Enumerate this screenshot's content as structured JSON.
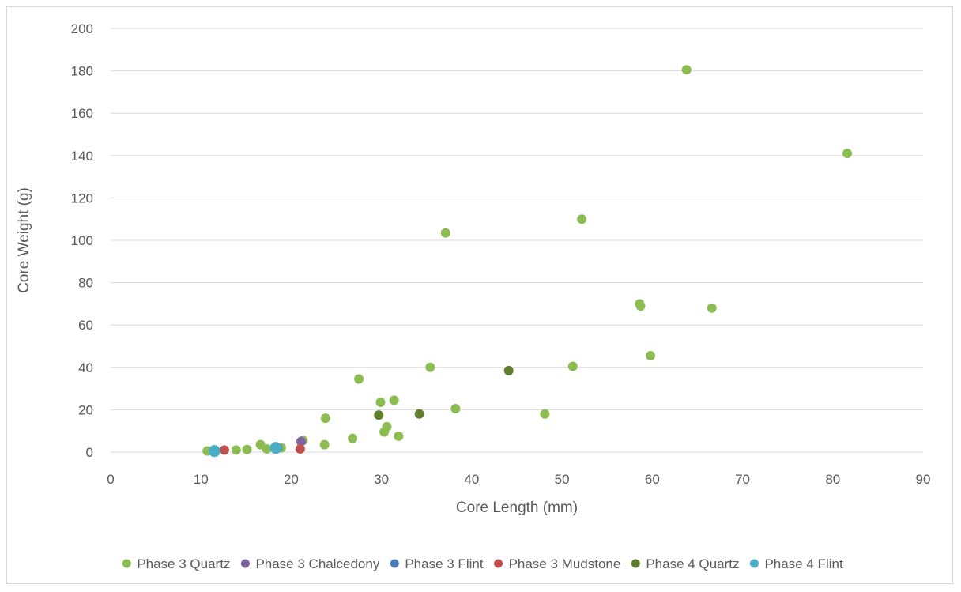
{
  "chart_data": {
    "type": "scatter",
    "title": "",
    "xlabel": "Core Length (mm)",
    "ylabel": "Core Weight (g)",
    "xlim": [
      0,
      90
    ],
    "ylim": [
      0,
      200
    ],
    "xticks": [
      0,
      10,
      20,
      30,
      40,
      50,
      60,
      70,
      80,
      90
    ],
    "yticks": [
      0,
      20,
      40,
      60,
      80,
      100,
      120,
      140,
      160,
      180,
      200
    ],
    "grid": "horizontal",
    "legend_position": "bottom",
    "series": [
      {
        "name": "Phase 3 Quartz",
        "color": "#8cbd52",
        "points": [
          [
            10.7,
            0.5
          ],
          [
            13.9,
            1.0
          ],
          [
            15.1,
            1.2
          ],
          [
            16.6,
            3.5
          ],
          [
            17.3,
            1.5
          ],
          [
            18.9,
            2.0
          ],
          [
            21.3,
            5.5
          ],
          [
            23.7,
            3.5
          ],
          [
            23.8,
            16.0
          ],
          [
            26.8,
            6.5
          ],
          [
            27.5,
            34.5
          ],
          [
            29.9,
            23.5
          ],
          [
            30.3,
            9.5
          ],
          [
            30.6,
            12.0
          ],
          [
            31.4,
            24.5
          ],
          [
            31.9,
            7.5
          ],
          [
            35.4,
            40.0
          ],
          [
            37.1,
            103.5
          ],
          [
            38.2,
            20.5
          ],
          [
            48.1,
            18.0
          ],
          [
            51.2,
            40.5
          ],
          [
            52.2,
            110.0
          ],
          [
            58.6,
            70.0
          ],
          [
            58.7,
            69.0
          ],
          [
            59.8,
            45.5
          ],
          [
            63.8,
            180.5
          ],
          [
            66.6,
            68.0
          ],
          [
            81.6,
            141.0
          ]
        ]
      },
      {
        "name": "Phase 3 Chalcedony",
        "color": "#8064a2",
        "points": [
          [
            21.1,
            5.0
          ]
        ]
      },
      {
        "name": "Phase 3 Flint",
        "color": "#4a7ebb",
        "points": [
          [
            18.5,
            2.0
          ]
        ]
      },
      {
        "name": "Phase 3 Mudstone",
        "color": "#c0504d",
        "points": [
          [
            12.6,
            1.0
          ],
          [
            21.0,
            1.5
          ]
        ]
      },
      {
        "name": "Phase 4 Quartz",
        "color": "#5f7f2d",
        "points": [
          [
            29.7,
            17.5
          ],
          [
            34.2,
            18.0
          ],
          [
            44.1,
            38.5
          ]
        ]
      },
      {
        "name": "Phase 4 Flint",
        "color": "#4bacc6",
        "points": [
          [
            11.5,
            0.5
          ],
          [
            18.3,
            2.0
          ]
        ]
      }
    ]
  }
}
